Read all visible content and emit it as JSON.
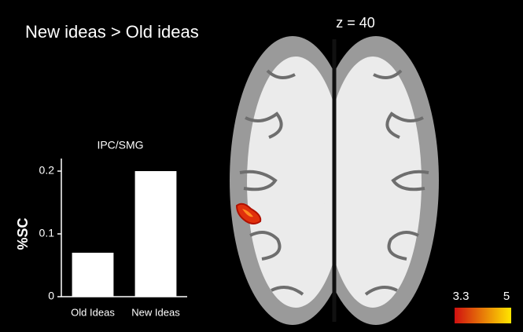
{
  "figure": {
    "title": "New ideas > Old ideas",
    "slice_label": "z = 40"
  },
  "colorbar": {
    "ticks": [
      3.3,
      5
    ],
    "colors": [
      "#d01010",
      "#ffe600"
    ]
  },
  "chart_data": {
    "type": "bar",
    "title": "IPC/SMG",
    "y_label": "%SC",
    "categories": [
      "Old Ideas",
      "New Ideas"
    ],
    "values": [
      0.07,
      0.2
    ],
    "color": "#ffffff",
    "ylim": [
      0,
      0.22
    ],
    "yticks": [
      0,
      0.1,
      0.2
    ]
  }
}
